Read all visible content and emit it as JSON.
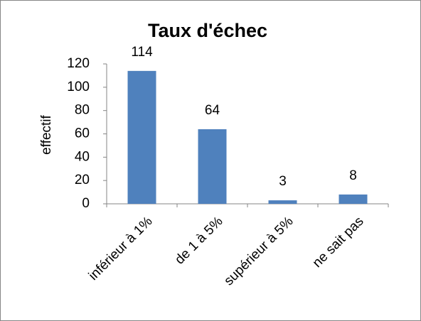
{
  "chart_data": {
    "type": "bar",
    "title": "Taux d'échec",
    "y_label": "effectif",
    "categories": [
      "inférieur à 1%",
      "de 1 à 5%",
      "supérieur à 5%",
      "ne sait pas"
    ],
    "values": [
      114,
      64,
      3,
      8
    ],
    "color": "#4f81bd",
    "ylim": [
      0,
      120
    ],
    "yticks": [
      0,
      20,
      40,
      60,
      80,
      100,
      120
    ],
    "grid": false
  }
}
